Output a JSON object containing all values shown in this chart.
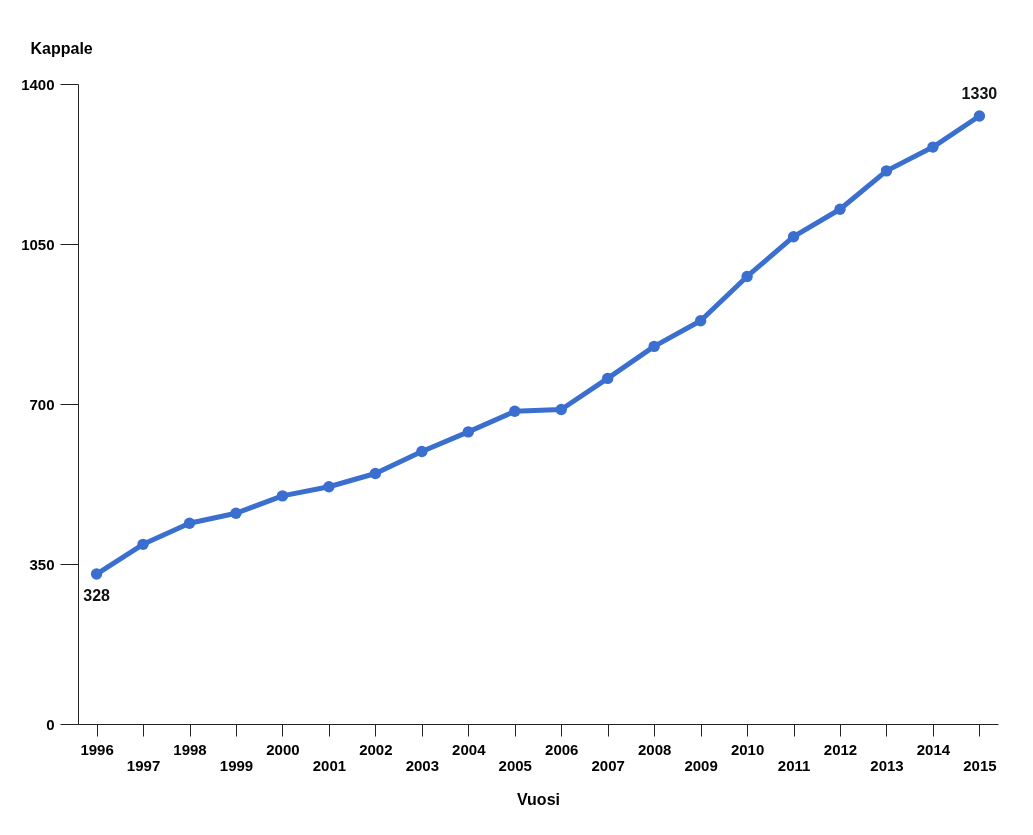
{
  "chart_data": {
    "type": "line",
    "xlabel": "Vuosi",
    "ylabel": "Kappale",
    "categories": [
      "1996",
      "1997",
      "1998",
      "1999",
      "2000",
      "2001",
      "2002",
      "2003",
      "2004",
      "2005",
      "2006",
      "2007",
      "2008",
      "2009",
      "2010",
      "2011",
      "2012",
      "2013",
      "2014",
      "2015"
    ],
    "series": [
      {
        "color": "#3a6fcf",
        "values": [
          328,
          393,
          439,
          461,
          499,
          519,
          548,
          596,
          639,
          684,
          688,
          756,
          826,
          882,
          979,
          1066,
          1126,
          1210,
          1262,
          1330
        ],
        "value_labels": [
          "328",
          null,
          null,
          null,
          null,
          null,
          null,
          null,
          null,
          null,
          null,
          null,
          null,
          null,
          null,
          null,
          null,
          null,
          null,
          "1330"
        ]
      }
    ],
    "ylim": [
      0,
      1400
    ],
    "yticks": [
      0,
      350,
      700,
      1050,
      1400
    ],
    "grid": false,
    "legend": false,
    "marker": "circle",
    "line_style": "solid"
  }
}
